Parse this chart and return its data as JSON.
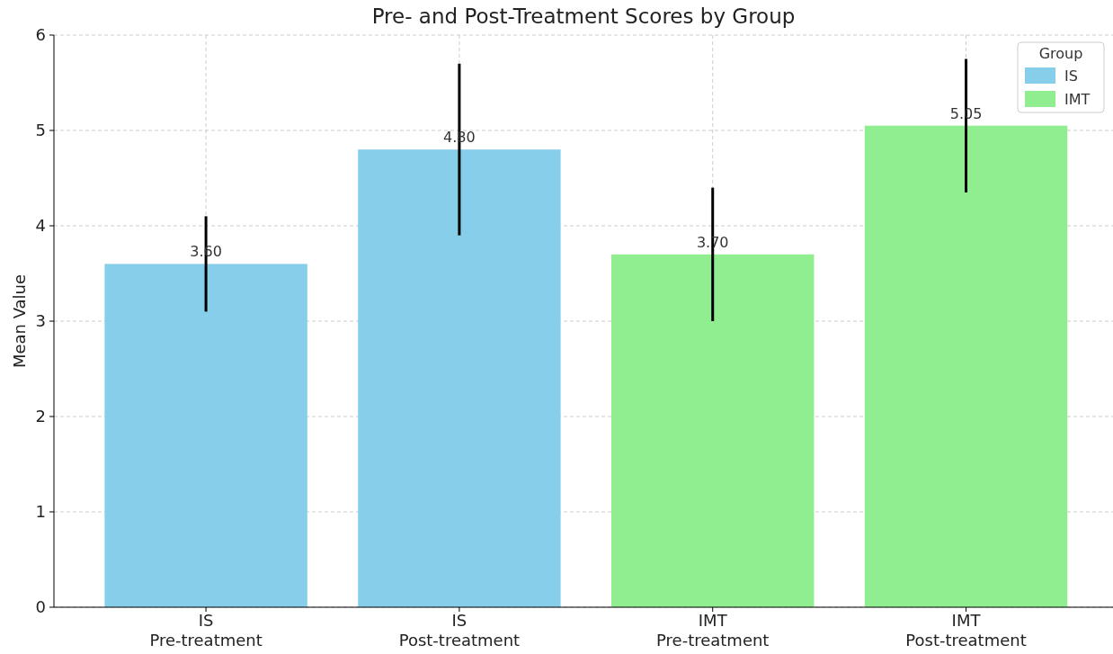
{
  "chart_data": {
    "type": "bar",
    "title": "Pre- and Post-Treatment Scores by Group",
    "ylabel": "Mean Value",
    "legend_title": "Group",
    "categories": [
      "IS\nPre-treatment",
      "IS\nPost-treatment",
      "IMT\nPre-treatment",
      "IMT\nPost-treatment"
    ],
    "series": [
      {
        "name": "IS",
        "color": "#87ceeb",
        "values": [
          3.6,
          4.8,
          null,
          null
        ],
        "errors": [
          0.5,
          0.9,
          null,
          null
        ],
        "value_labels": [
          "3.60",
          "4.80",
          null,
          null
        ]
      },
      {
        "name": "IMT",
        "color": "#90ee90",
        "values": [
          null,
          null,
          3.7,
          5.05
        ],
        "errors": [
          null,
          null,
          0.7,
          0.7
        ],
        "value_labels": [
          null,
          null,
          "3.70",
          "5.05"
        ]
      }
    ],
    "ylim": [
      0,
      6
    ],
    "yticks": [
      0,
      1,
      2,
      3,
      4,
      5,
      6
    ],
    "grid": true,
    "legend": "top right"
  }
}
